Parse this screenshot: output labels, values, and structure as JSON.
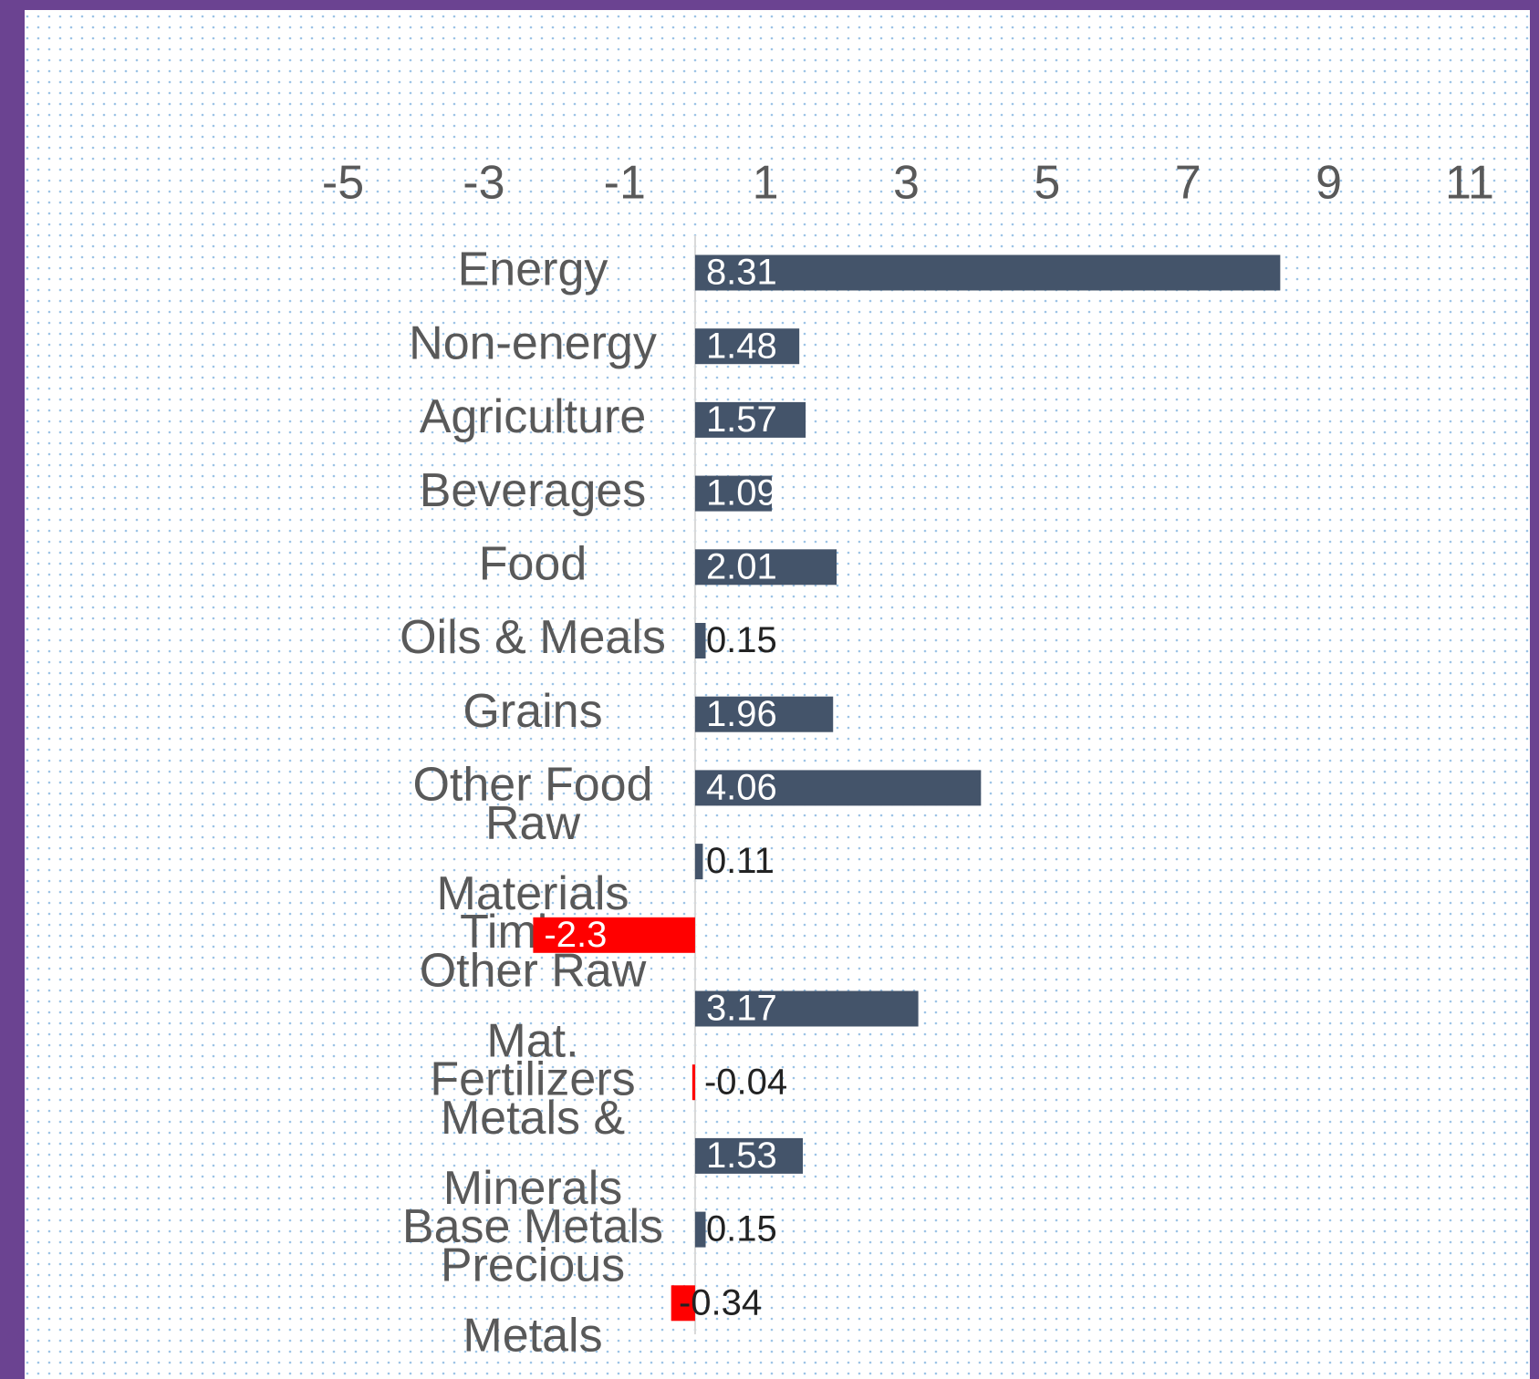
{
  "chart_data": {
    "type": "barh",
    "categories": [
      "Energy",
      "Non-energy",
      "Agriculture",
      "Beverages",
      "Food",
      "Oils & Meals",
      "Grains",
      "Other Food",
      "Raw Materials",
      "Timber",
      "Other Raw Mat.",
      "Fertilizers",
      "Metals & Minerals",
      "Base Metals",
      "Precious Metals"
    ],
    "values": [
      8.31,
      1.48,
      1.57,
      1.09,
      2.01,
      0.15,
      1.96,
      4.06,
      0.11,
      -2.3,
      3.17,
      -0.04,
      1.53,
      0.15,
      -0.34
    ],
    "color": "#44546a",
    "negative_color": "#ff0000",
    "xlim": [
      -5,
      11
    ],
    "xticks": [
      -5,
      -3,
      -1,
      1,
      3,
      5,
      7,
      9,
      11
    ],
    "xaxis_position": "top",
    "grid": false
  }
}
